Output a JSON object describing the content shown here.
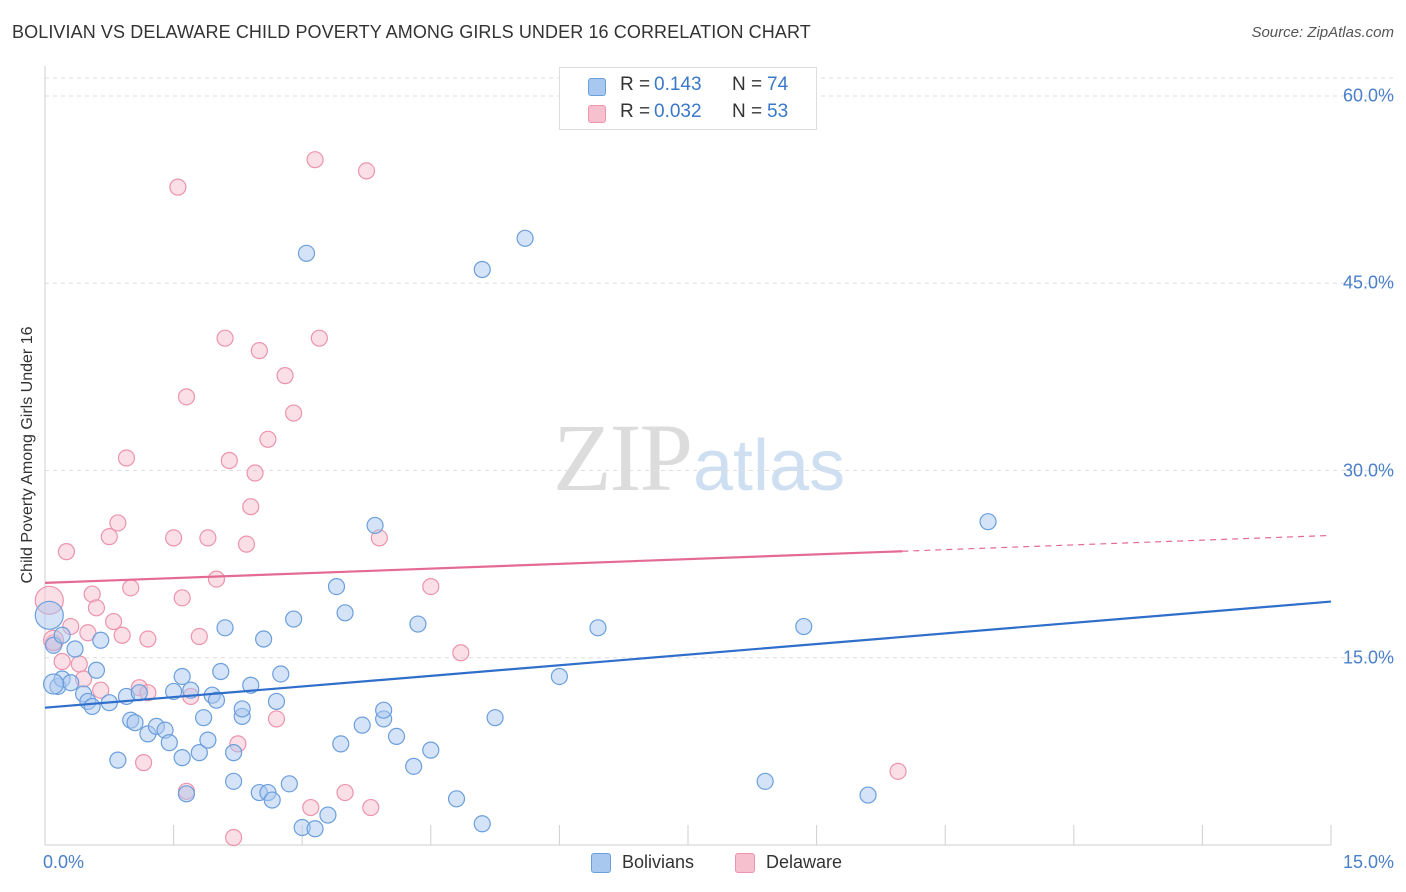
{
  "title": "BOLIVIAN VS DELAWARE CHILD POVERTY AMONG GIRLS UNDER 16 CORRELATION CHART",
  "source": "Source: ZipAtlas.com",
  "watermark": {
    "zip": "ZIP",
    "atlas": "atlas"
  },
  "colors": {
    "bolivians_fill": "#a9c8ef",
    "bolivians_stroke": "#6b9fdc",
    "bolivians_line": "#2f6fcb",
    "delaware_fill": "#f7c0cf",
    "delaware_stroke": "#ec93ad",
    "delaware_line": "#e46a93",
    "tick_label": "#4a7fc9",
    "grid": "#dedede"
  },
  "stats": {
    "rows": [
      {
        "r_label": "R =",
        "r_value": "0.143",
        "n_label": "N =",
        "n_value": "74"
      },
      {
        "r_label": "R =",
        "r_value": "0.032",
        "n_label": "N =",
        "n_value": "53"
      }
    ]
  },
  "legend": {
    "items": [
      "Bolivians",
      "Delaware"
    ]
  },
  "chart_data": {
    "type": "scatter",
    "title": "BOLIVIAN VS DELAWARE CHILD POVERTY AMONG GIRLS UNDER 16 CORRELATION CHART",
    "xlabel": "",
    "ylabel": "Child Poverty Among Girls Under 16",
    "xlim": [
      0,
      15
    ],
    "ylim": [
      0,
      60
    ],
    "x_tick_labels": [
      "0.0%",
      "15.0%"
    ],
    "y_ticks": [
      15,
      30,
      45,
      60
    ],
    "y_tick_labels": [
      "15.0%",
      "30.0%",
      "45.0%",
      "60.0%"
    ],
    "grid": true,
    "legend_position": "bottom",
    "series": [
      {
        "name": "Bolivians",
        "trend": {
          "x": [
            0,
            15
          ],
          "y": [
            11.0,
            19.5
          ]
        },
        "points": [
          [
            0.05,
            18.4
          ],
          [
            0.1,
            16.0
          ],
          [
            0.15,
            12.7
          ],
          [
            0.2,
            16.8
          ],
          [
            0.2,
            13.3
          ],
          [
            0.3,
            13.0
          ],
          [
            0.35,
            15.7
          ],
          [
            0.45,
            12.1
          ],
          [
            0.5,
            11.5
          ],
          [
            0.55,
            11.1
          ],
          [
            0.6,
            14.0
          ],
          [
            0.65,
            16.4
          ],
          [
            0.75,
            11.4
          ],
          [
            0.85,
            6.8
          ],
          [
            0.95,
            11.9
          ],
          [
            1.0,
            10.0
          ],
          [
            1.05,
            9.8
          ],
          [
            1.1,
            12.2
          ],
          [
            1.2,
            8.9
          ],
          [
            1.3,
            9.5
          ],
          [
            1.4,
            9.2
          ],
          [
            1.45,
            8.2
          ],
          [
            1.5,
            12.3
          ],
          [
            1.6,
            7.0
          ],
          [
            1.6,
            13.5
          ],
          [
            1.65,
            4.1
          ],
          [
            1.7,
            12.4
          ],
          [
            1.8,
            7.4
          ],
          [
            1.85,
            10.2
          ],
          [
            1.9,
            8.4
          ],
          [
            1.95,
            12.0
          ],
          [
            2.0,
            11.6
          ],
          [
            2.05,
            13.9
          ],
          [
            2.1,
            17.4
          ],
          [
            2.2,
            5.1
          ],
          [
            2.2,
            7.4
          ],
          [
            2.3,
            10.3
          ],
          [
            2.3,
            10.9
          ],
          [
            2.4,
            12.8
          ],
          [
            2.5,
            4.2
          ],
          [
            2.55,
            16.5
          ],
          [
            2.6,
            4.2
          ],
          [
            2.65,
            3.6
          ],
          [
            2.7,
            11.5
          ],
          [
            2.75,
            13.7
          ],
          [
            2.85,
            4.9
          ],
          [
            2.9,
            18.1
          ],
          [
            3.0,
            1.4
          ],
          [
            3.05,
            47.4
          ],
          [
            3.15,
            1.3
          ],
          [
            3.3,
            2.4
          ],
          [
            3.4,
            20.7
          ],
          [
            3.45,
            8.1
          ],
          [
            3.5,
            18.6
          ],
          [
            3.7,
            9.6
          ],
          [
            3.85,
            25.6
          ],
          [
            3.95,
            10.1
          ],
          [
            3.95,
            10.8
          ],
          [
            4.1,
            8.7
          ],
          [
            4.3,
            6.3
          ],
          [
            4.35,
            17.7
          ],
          [
            4.5,
            7.6
          ],
          [
            4.8,
            3.7
          ],
          [
            5.1,
            46.1
          ],
          [
            5.1,
            1.7
          ],
          [
            5.25,
            10.2
          ],
          [
            5.6,
            48.6
          ],
          [
            6.0,
            13.5
          ],
          [
            6.45,
            17.4
          ],
          [
            8.4,
            5.1
          ],
          [
            8.85,
            17.5
          ],
          [
            9.6,
            4.0
          ],
          [
            11.0,
            25.9
          ],
          [
            0.1,
            12.9
          ]
        ],
        "radius": [
          14,
          8,
          8,
          8,
          8,
          8,
          8,
          8,
          8,
          8,
          8,
          8,
          8,
          8,
          8,
          8,
          8,
          8,
          8,
          8,
          8,
          8,
          8,
          8,
          8,
          8,
          8,
          8,
          8,
          8,
          8,
          8,
          8,
          8,
          8,
          8,
          8,
          8,
          8,
          8,
          8,
          8,
          8,
          8,
          8,
          8,
          8,
          8,
          8,
          8,
          8,
          8,
          8,
          8,
          8,
          8,
          8,
          8,
          8,
          8,
          8,
          8,
          8,
          8,
          8,
          8,
          8,
          8,
          8,
          8,
          8,
          8,
          8,
          10
        ]
      },
      {
        "name": "Delaware",
        "trend": {
          "x": [
            0,
            15
          ],
          "y": [
            21.0,
            24.8
          ],
          "solid_to_x": 10
        },
        "points": [
          [
            0.05,
            19.6
          ],
          [
            0.1,
            16.2
          ],
          [
            0.2,
            14.7
          ],
          [
            0.25,
            23.5
          ],
          [
            0.3,
            17.5
          ],
          [
            0.4,
            14.5
          ],
          [
            0.45,
            13.3
          ],
          [
            0.5,
            17.0
          ],
          [
            0.55,
            20.1
          ],
          [
            0.6,
            19.0
          ],
          [
            0.65,
            12.4
          ],
          [
            0.75,
            24.7
          ],
          [
            0.8,
            17.9
          ],
          [
            0.85,
            25.8
          ],
          [
            0.9,
            16.8
          ],
          [
            0.95,
            31.0
          ],
          [
            1.0,
            20.6
          ],
          [
            1.1,
            12.6
          ],
          [
            1.15,
            6.6
          ],
          [
            1.2,
            12.2
          ],
          [
            1.2,
            16.5
          ],
          [
            1.5,
            24.6
          ],
          [
            1.55,
            52.7
          ],
          [
            1.6,
            19.8
          ],
          [
            1.65,
            35.9
          ],
          [
            1.65,
            4.3
          ],
          [
            1.7,
            11.9
          ],
          [
            1.8,
            16.7
          ],
          [
            1.9,
            24.6
          ],
          [
            2.0,
            21.3
          ],
          [
            2.1,
            40.6
          ],
          [
            2.15,
            30.8
          ],
          [
            2.2,
            0.6
          ],
          [
            2.25,
            8.1
          ],
          [
            2.35,
            24.1
          ],
          [
            2.4,
            27.1
          ],
          [
            2.45,
            29.8
          ],
          [
            2.5,
            39.6
          ],
          [
            2.6,
            32.5
          ],
          [
            2.7,
            10.1
          ],
          [
            2.8,
            37.6
          ],
          [
            2.9,
            34.6
          ],
          [
            3.1,
            3.0
          ],
          [
            3.15,
            54.9
          ],
          [
            3.2,
            40.6
          ],
          [
            3.5,
            4.2
          ],
          [
            3.75,
            54.0
          ],
          [
            3.8,
            3.0
          ],
          [
            3.9,
            24.6
          ],
          [
            4.5,
            20.7
          ],
          [
            4.85,
            15.4
          ],
          [
            9.95,
            5.9
          ],
          [
            0.1,
            16.4
          ]
        ],
        "radius": [
          14,
          8,
          8,
          8,
          8,
          8,
          8,
          8,
          8,
          8,
          8,
          8,
          8,
          8,
          8,
          8,
          8,
          8,
          8,
          8,
          8,
          8,
          8,
          8,
          8,
          8,
          8,
          8,
          8,
          8,
          8,
          8,
          8,
          8,
          8,
          8,
          8,
          8,
          8,
          8,
          8,
          8,
          8,
          8,
          8,
          8,
          8,
          8,
          8,
          8,
          8,
          8,
          10
        ]
      }
    ]
  }
}
